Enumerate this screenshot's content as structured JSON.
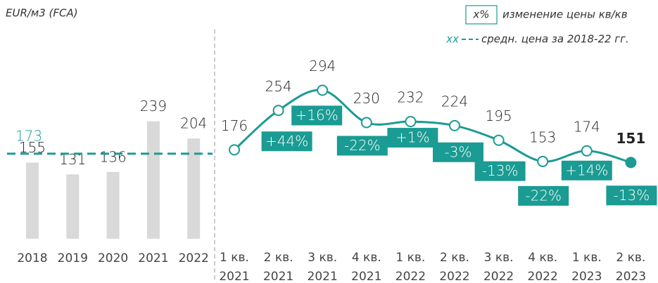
{
  "chart_data": [
    {
      "type": "bar",
      "y_label": "EUR/м3 (FCA)",
      "categories": [
        "2018",
        "2019",
        "2020",
        "2021",
        "2022"
      ],
      "values": [
        155,
        131,
        136,
        239,
        204
      ],
      "color": "#d9d9d9",
      "average": 173,
      "average_color": "#1a9b93",
      "ylim": [
        0,
        480
      ]
    },
    {
      "type": "line",
      "categories": [
        "1 кв. 2021",
        "2 кв. 2021",
        "3 кв. 2021",
        "4 кв. 2021",
        "1 кв. 2022",
        "2 кв. 2022",
        "3 кв. 2022",
        "4 кв. 2022",
        "1 кв. 2023",
        "2 кв. 2023"
      ],
      "values": [
        176,
        254,
        294,
        230,
        232,
        224,
        195,
        153,
        174,
        151
      ],
      "color": "#1a9b93",
      "changes": [
        44,
        16,
        -22,
        1,
        -3,
        -13,
        -22,
        14,
        -13
      ],
      "change_labels": [
        "+44%",
        "+16%",
        "-22%",
        "+1%",
        "-3%",
        "-13%",
        "-22%",
        "+14%",
        "-13%"
      ],
      "ylim": [
        0,
        467
      ]
    }
  ],
  "legend": {
    "change_key": "x%",
    "change_text": "изменение цены кв/кв",
    "average_key": "xx",
    "average_text": "средн. цена за 2018-22 гг."
  }
}
